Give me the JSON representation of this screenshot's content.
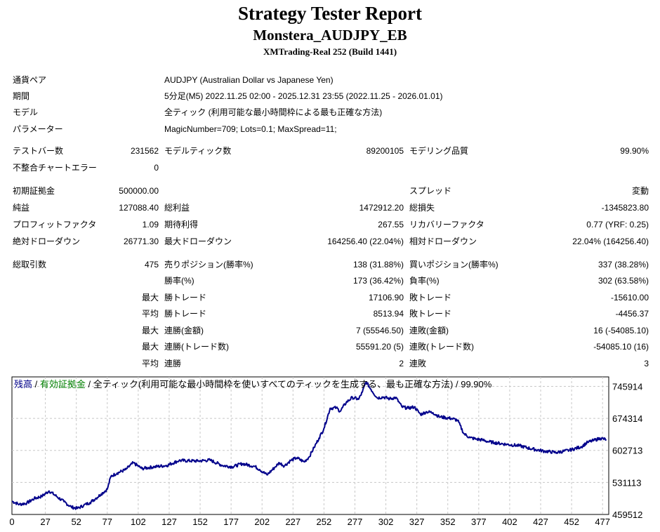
{
  "header": {
    "title": "Strategy Tester Report",
    "expert": "Monstera_AUDJPY_EB",
    "server": "XMTrading-Real 252 (Build 1441)"
  },
  "info": [
    {
      "label": "通貨ペア",
      "value": "AUDJPY (Australian Dollar vs Japanese Yen)"
    },
    {
      "label": "期間",
      "value": "5分足(M5) 2022.11.25 02:00 - 2025.12.31 23:55 (2022.11.25 - 2026.01.01)"
    },
    {
      "label": "モデル",
      "value": "全ティック (利用可能な最小時間枠による最も正確な方法)"
    },
    {
      "label": "パラメーター",
      "value": "MagicNumber=709; Lots=0.1; MaxSpread=11;"
    }
  ],
  "stats": {
    "bars_label": "テストバー数",
    "bars": "231562",
    "ticks_label": "モデルティック数",
    "ticks": "89200105",
    "quality_label": "モデリング品質",
    "quality": "99.90%",
    "errors_label": "不整合チャートエラー",
    "errors": "0",
    "deposit_label": "初期証拠金",
    "deposit": "500000.00",
    "spread_label": "スプレッド",
    "spread": "変動",
    "net_label": "純益",
    "net": "127088.40",
    "gross_profit_label": "総利益",
    "gross_profit": "1472912.20",
    "gross_loss_label": "総損失",
    "gross_loss": "-1345823.80",
    "pf_label": "プロフィットファクタ",
    "pf": "1.09",
    "expected_label": "期待利得",
    "expected": "267.55",
    "recovery_label": "リカバリーファクタ",
    "recovery": "0.77 (YRF: 0.25)",
    "abs_dd_label": "絶対ドローダウン",
    "abs_dd": "26771.30",
    "max_dd_label": "最大ドローダウン",
    "max_dd": "164256.40 (22.04%)",
    "rel_dd_label": "相対ドローダウン",
    "rel_dd": "22.04% (164256.40)",
    "trades_label": "総取引数",
    "trades": "475",
    "short_label": "売りポジション(勝率%)",
    "short": "138 (31.88%)",
    "long_label": "買いポジション(勝率%)",
    "long": "337 (38.28%)",
    "win_pct_label": "勝率(%)",
    "win_pct": "173 (36.42%)",
    "loss_pct_label": "負率(%)",
    "loss_pct": "302 (63.58%)",
    "max_word": "最大",
    "avg_word": "平均",
    "largest_win_label": "勝トレード",
    "largest_win": "17106.90",
    "largest_loss_label": "敗トレード",
    "largest_loss": "-15610.00",
    "avg_win_label": "勝トレード",
    "avg_win": "8513.94",
    "avg_loss_label": "敗トレード",
    "avg_loss": "-4456.37",
    "cons_wins_money_label": "連勝(金額)",
    "cons_wins_money": "7 (55546.50)",
    "cons_losses_money_label": "連敗(金額)",
    "cons_losses_money": "16 (-54085.10)",
    "cons_wins_count_label": "連勝(トレード数)",
    "cons_wins_count": "55591.20 (5)",
    "cons_losses_count_label": "連敗(トレード数)",
    "cons_losses_count": "-54085.10 (16)",
    "avg_cons_wins_label": "連勝",
    "avg_cons_wins": "2",
    "avg_cons_losses_label": "連敗",
    "avg_cons_losses": "3"
  },
  "chart_legend": {
    "balance": "残高",
    "sep1": " / ",
    "equity": "有効証拠金",
    "rest": " / 全ティック(利用可能な最小時間枠を使いすべてのティックを生成する、最も正確な方法) / 99.90%"
  },
  "colors": {
    "balance_line": "#00008b",
    "equity_label": "#008000",
    "grid": "#c8c8c8"
  },
  "chart_data": {
    "type": "line",
    "title": "",
    "xlabel": "",
    "ylabel": "",
    "x_ticks": [
      0,
      27,
      52,
      77,
      102,
      127,
      152,
      177,
      202,
      227,
      252,
      277,
      302,
      327,
      352,
      377,
      402,
      427,
      452,
      477
    ],
    "y_ticks": [
      459512,
      531113,
      602713,
      674314,
      745914
    ],
    "xlim": [
      0,
      482
    ],
    "ylim": [
      459512,
      767000
    ],
    "grid": true,
    "series": [
      {
        "name": "残高",
        "x": [
          0,
          6,
          12,
          18,
          24,
          30,
          36,
          42,
          48,
          53,
          58,
          63,
          68,
          72,
          77,
          80,
          85,
          92,
          98,
          105,
          115,
          125,
          135,
          150,
          160,
          170,
          178,
          186,
          196,
          200,
          206,
          212,
          216,
          220,
          225,
          230,
          236,
          240,
          244,
          248,
          252,
          257,
          262,
          265,
          270,
          275,
          280,
          283,
          286,
          290,
          295,
          300,
          305,
          310,
          315,
          320,
          325,
          330,
          335,
          340,
          345,
          350,
          355,
          360,
          365,
          370,
          375,
          380,
          385,
          390,
          400,
          410,
          420,
          430,
          440,
          450,
          460,
          465,
          470,
          475,
          480
        ],
        "y": [
          489000,
          482000,
          485000,
          495000,
          500000,
          512000,
          500000,
          488000,
          476000,
          473000,
          480000,
          486000,
          496000,
          505000,
          516000,
          545000,
          552000,
          560000,
          575000,
          562000,
          566000,
          569000,
          580000,
          579000,
          581000,
          569000,
          566000,
          573000,
          567000,
          560000,
          548000,
          564000,
          575000,
          568000,
          580000,
          586000,
          577000,
          588000,
          609000,
          630000,
          652000,
          697000,
          698000,
          690000,
          710000,
          721000,
          717000,
          733000,
          756000,
          739000,
          720000,
          722000,
          718000,
          721000,
          700000,
          697000,
          700000,
          683000,
          689000,
          687000,
          678000,
          676000,
          674000,
          670000,
          640000,
          631000,
          628000,
          626000,
          622000,
          620000,
          616000,
          613000,
          606000,
          601000,
          598000,
          603000,
          611000,
          621000,
          625000,
          630000,
          627000
        ]
      }
    ]
  }
}
